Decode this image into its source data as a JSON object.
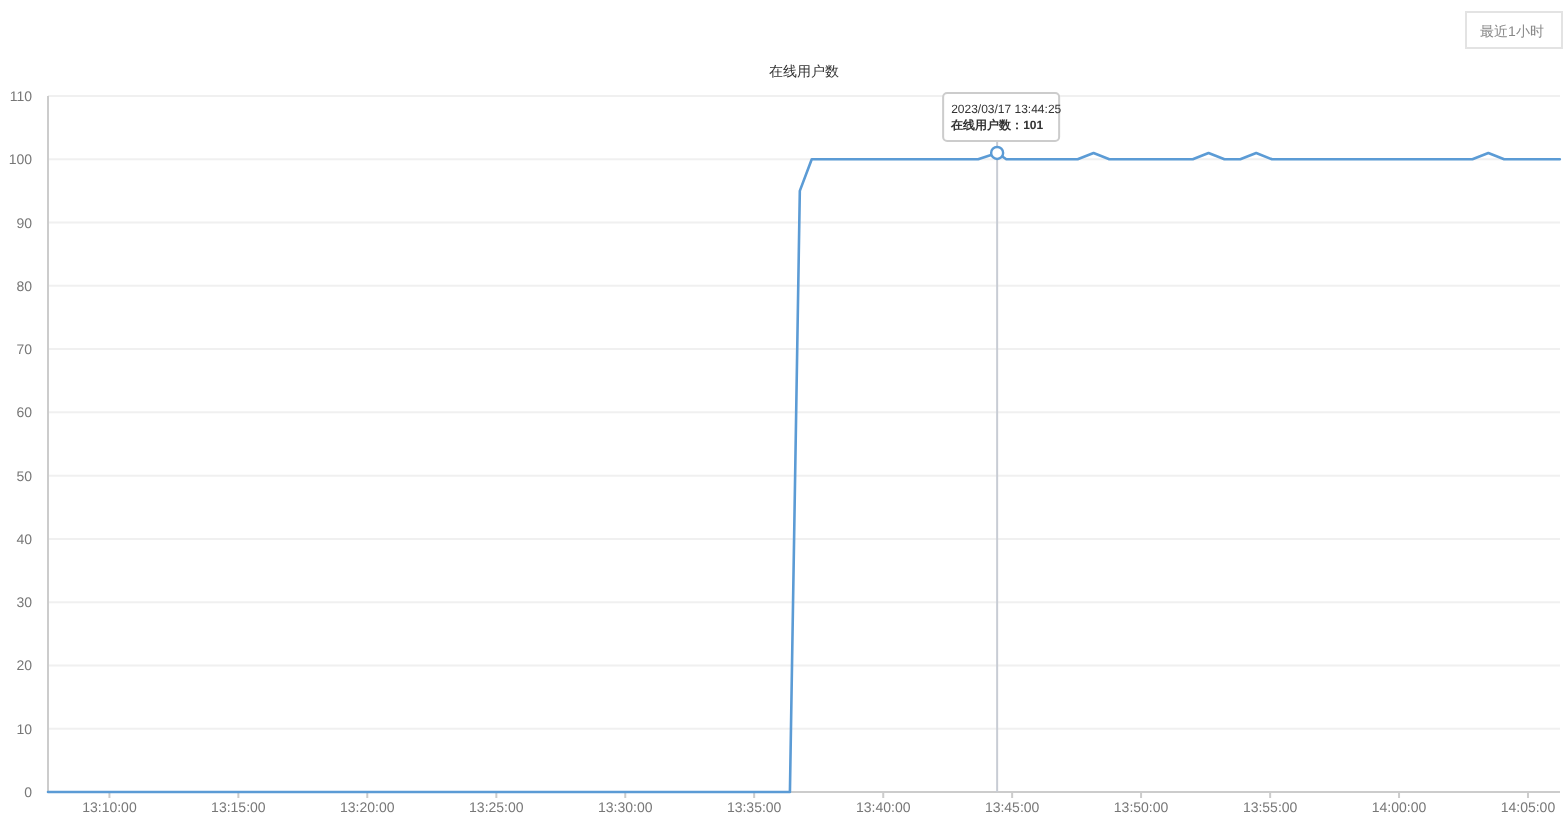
{
  "chart_data": {
    "type": "line",
    "title": "在线用户数",
    "x": [
      13.127,
      13.6064,
      13.6128,
      13.6205,
      13.728,
      13.7403,
      13.7462,
      13.7923,
      13.8026,
      13.8128,
      13.8667,
      13.8769,
      13.8872,
      13.8974,
      13.9077,
      13.9179,
      14.0474,
      14.0577,
      14.0679,
      14.1039
    ],
    "series": [
      {
        "color": "#5b9bd5",
        "values": [
          0,
          0,
          95,
          100,
          100,
          101,
          100,
          100,
          101,
          100,
          100,
          101,
          100,
          100,
          101,
          100,
          100,
          101,
          100,
          100
        ]
      }
    ],
    "xlim": [
      13.127,
      14.104
    ],
    "xticks": [
      {
        "value": 13.1667,
        "label": "13:10:00"
      },
      {
        "value": 13.25,
        "label": "13:15:00"
      },
      {
        "value": 13.3333,
        "label": "13:20:00"
      },
      {
        "value": 13.4167,
        "label": "13:25:00"
      },
      {
        "value": 13.5,
        "label": "13:30:00"
      },
      {
        "value": 13.5833,
        "label": "13:35:00"
      },
      {
        "value": 13.6667,
        "label": "13:40:00"
      },
      {
        "value": 13.75,
        "label": "13:45:00"
      },
      {
        "value": 13.8333,
        "label": "13:50:00"
      },
      {
        "value": 13.9167,
        "label": "13:55:00"
      },
      {
        "value": 14.0,
        "label": "14:00:00"
      },
      {
        "value": 14.0833,
        "label": "14:05:00"
      }
    ],
    "ylim": [
      0,
      110
    ],
    "yticks": [
      0,
      10,
      20,
      30,
      40,
      50,
      60,
      70,
      80,
      90,
      100,
      110
    ],
    "grid": "y",
    "ref_lines": [
      {
        "axis": "x",
        "value": 13.7403,
        "color": "#c8ccd4"
      }
    ],
    "annotations": [
      {
        "text": "2023/03/17 13:44:25\n在线用户数：101",
        "x": 13.7403,
        "y": 101
      },
      "最近1小时"
    ]
  }
}
